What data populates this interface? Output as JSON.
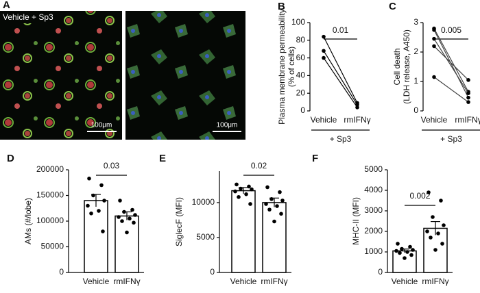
{
  "panel_a": {
    "letter": "A",
    "label": "Vehicle + Sp3",
    "scale_bars": [
      "100μm",
      "100μm"
    ]
  },
  "chart_data": [
    {
      "panel": "B",
      "type": "paired-line",
      "ylabel": [
        "Plasma membrane permeability",
        "(% of cells)"
      ],
      "categories": [
        "Vehicle",
        "rmIFNγ"
      ],
      "series": [
        {
          "values": [
            84,
            9
          ],
          "color": "#000000"
        },
        {
          "values": [
            68,
            7
          ],
          "color": "#000000"
        },
        {
          "values": [
            60,
            4
          ],
          "color": "#000000"
        }
      ],
      "ylim": [
        0,
        100
      ],
      "yticks": [
        0,
        20,
        40,
        60,
        80,
        100
      ],
      "significance": "0.01",
      "group_label": "+ Sp3"
    },
    {
      "panel": "C",
      "type": "paired-line",
      "ylabel": [
        "Cell death",
        "(LDH release, A450)"
      ],
      "categories": [
        "Vehicle",
        "rmIFNγ"
      ],
      "series": [
        {
          "values": [
            2.8,
            0.65
          ],
          "color": "#444444"
        },
        {
          "values": [
            2.75,
            0.45
          ],
          "color": "#444444"
        },
        {
          "values": [
            2.45,
            0.6
          ],
          "color": "#444444"
        },
        {
          "values": [
            2.2,
            1.05
          ],
          "color": "#444444"
        },
        {
          "values": [
            1.15,
            0.3
          ],
          "color": "#444444"
        }
      ],
      "ylim": [
        0,
        3
      ],
      "yticks": [
        0,
        1,
        2,
        3
      ],
      "significance": "0.005",
      "group_label": "+ Sp3"
    },
    {
      "panel": "D",
      "type": "bar",
      "ylabel": [
        "AMs (#/lobe)"
      ],
      "categories": [
        "Vehicle",
        "rmIFNγ"
      ],
      "values": [
        140000,
        110000
      ],
      "errors": [
        12000,
        8000
      ],
      "points": [
        [
          183000,
          170000,
          150000,
          140000,
          130000,
          120000,
          115000,
          80000
        ],
        [
          140000,
          122000,
          118000,
          112000,
          108000,
          105000,
          100000,
          97000,
          78000
        ]
      ],
      "ylim": [
        0,
        200000
      ],
      "yticks": [
        0,
        50000,
        100000,
        150000,
        200000
      ],
      "significance": "0.03"
    },
    {
      "panel": "E",
      "type": "bar",
      "ylabel": [
        "SiglecF (MFI)"
      ],
      "categories": [
        "Vehicle",
        "rmIFNγ"
      ],
      "values": [
        11700,
        10000
      ],
      "errors": [
        450,
        650
      ],
      "points": [
        [
          12600,
          12300,
          12000,
          11900,
          11600,
          11200,
          10800,
          9800
        ],
        [
          12200,
          11500,
          10500,
          10300,
          9800,
          9500,
          9000,
          8400,
          7300
        ]
      ],
      "ylim": [
        0,
        14500
      ],
      "yticks": [
        0,
        5000,
        10000
      ],
      "significance": "0.02"
    },
    {
      "panel": "F",
      "type": "bar",
      "ylabel": [
        "MHC-II (MFI)"
      ],
      "categories": [
        "Vehicle",
        "rmIFNγ"
      ],
      "values": [
        1050,
        2150
      ],
      "errors": [
        90,
        330
      ],
      "points": [
        [
          1400,
          1250,
          1150,
          1100,
          1050,
          1000,
          950,
          850,
          700
        ],
        [
          3900,
          3500,
          2700,
          2300,
          2000,
          1900,
          1700,
          1400,
          1100
        ]
      ],
      "ylim": [
        0,
        5000
      ],
      "yticks": [
        0,
        1000,
        2000,
        3000,
        4000,
        5000
      ],
      "significance": "0.002"
    }
  ]
}
